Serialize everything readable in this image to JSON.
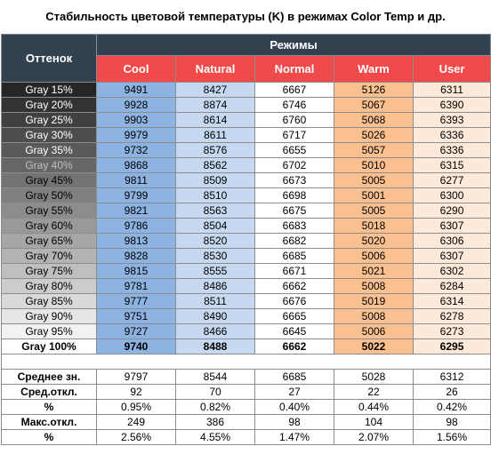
{
  "title": "Стабильность цветовой температуры (K) в режимах Color Temp и др.",
  "header": {
    "shade_label": "Оттенок",
    "modes_label": "Режимы",
    "modes": [
      "Cool",
      "Natural",
      "Normal",
      "Warm",
      "User"
    ]
  },
  "colors": {
    "header_dark": "#32414f",
    "header_red": "#f04a4a",
    "cool": "#8db3e2",
    "natural": "#c6d9f1",
    "normal": "#ffffff",
    "warm": "#fac090",
    "user": "#fde9d9"
  },
  "rows": [
    {
      "label": "Gray 15%",
      "bg": "#262626",
      "fg": "#ffffff",
      "values": [
        "9491",
        "8427",
        "6667",
        "5126",
        "6311"
      ]
    },
    {
      "label": "Gray 20%",
      "bg": "#333333",
      "fg": "#ffffff",
      "values": [
        "9928",
        "8874",
        "6746",
        "5067",
        "6390"
      ]
    },
    {
      "label": "Gray 25%",
      "bg": "#404040",
      "fg": "#ffffff",
      "values": [
        "9903",
        "8614",
        "6760",
        "5068",
        "6393"
      ]
    },
    {
      "label": "Gray 30%",
      "bg": "#4d4d4d",
      "fg": "#ffffff",
      "values": [
        "9979",
        "8611",
        "6717",
        "5026",
        "6336"
      ]
    },
    {
      "label": "Gray 35%",
      "bg": "#595959",
      "fg": "#ffffff",
      "values": [
        "9732",
        "8576",
        "6655",
        "5057",
        "6336"
      ]
    },
    {
      "label": "Gray 40%",
      "bg": "#666666",
      "fg": "#bfbfbf",
      "values": [
        "9868",
        "8562",
        "6702",
        "5010",
        "6315"
      ]
    },
    {
      "label": "Gray 45%",
      "bg": "#737373",
      "fg": "#000000",
      "values": [
        "9811",
        "8509",
        "6673",
        "5005",
        "6277"
      ]
    },
    {
      "label": "Gray 50%",
      "bg": "#808080",
      "fg": "#000000",
      "values": [
        "9799",
        "8510",
        "6698",
        "5001",
        "6300"
      ]
    },
    {
      "label": "Gray 55%",
      "bg": "#8c8c8c",
      "fg": "#000000",
      "values": [
        "9821",
        "8563",
        "6675",
        "5005",
        "6290"
      ]
    },
    {
      "label": "Gray 60%",
      "bg": "#999999",
      "fg": "#000000",
      "values": [
        "9786",
        "8504",
        "6683",
        "5018",
        "6307"
      ]
    },
    {
      "label": "Gray 65%",
      "bg": "#a6a6a6",
      "fg": "#000000",
      "values": [
        "9813",
        "8520",
        "6682",
        "5020",
        "6306"
      ]
    },
    {
      "label": "Gray 70%",
      "bg": "#b3b3b3",
      "fg": "#000000",
      "values": [
        "9828",
        "8530",
        "6685",
        "5006",
        "6307"
      ]
    },
    {
      "label": "Gray 75%",
      "bg": "#bfbfbf",
      "fg": "#000000",
      "values": [
        "9815",
        "8555",
        "6671",
        "5021",
        "6302"
      ]
    },
    {
      "label": "Gray 80%",
      "bg": "#cccccc",
      "fg": "#000000",
      "values": [
        "9781",
        "8486",
        "6662",
        "5008",
        "6284"
      ]
    },
    {
      "label": "Gray 85%",
      "bg": "#d9d9d9",
      "fg": "#000000",
      "values": [
        "9777",
        "8511",
        "6676",
        "5019",
        "6314"
      ]
    },
    {
      "label": "Gray 90%",
      "bg": "#e6e6e6",
      "fg": "#000000",
      "values": [
        "9751",
        "8490",
        "6665",
        "5008",
        "6278"
      ]
    },
    {
      "label": "Gray 95%",
      "bg": "#f2f2f2",
      "fg": "#000000",
      "values": [
        "9727",
        "8466",
        "6645",
        "5006",
        "6273"
      ]
    },
    {
      "label": "Gray 100%",
      "bg": "#ffffff",
      "fg": "#000000",
      "bold": true,
      "values": [
        "9740",
        "8488",
        "6662",
        "5022",
        "6295"
      ]
    }
  ],
  "stats": [
    {
      "label": "Среднее зн.",
      "values": [
        "9797",
        "8544",
        "6685",
        "5028",
        "6312"
      ]
    },
    {
      "label": "Сред.откл.",
      "values": [
        "92",
        "70",
        "27",
        "22",
        "26"
      ]
    },
    {
      "label": "%",
      "values": [
        "0.95%",
        "0.82%",
        "0.40%",
        "0.44%",
        "0.42%"
      ]
    },
    {
      "label": "Макс.откл.",
      "values": [
        "249",
        "386",
        "98",
        "104",
        "98"
      ]
    },
    {
      "label": "%",
      "values": [
        "2.56%",
        "4.55%",
        "1.47%",
        "2.07%",
        "1.56%"
      ]
    }
  ]
}
